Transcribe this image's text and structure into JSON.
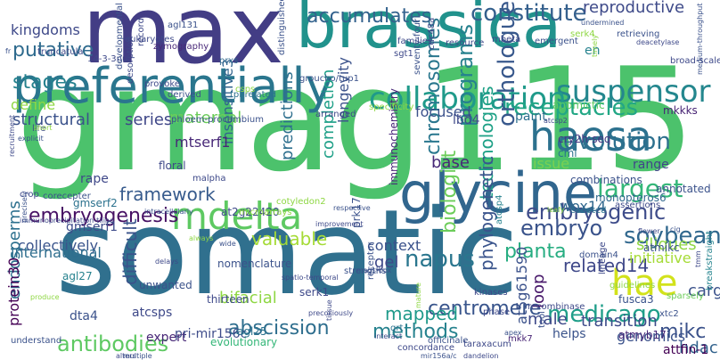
{
  "wordcloud": {
    "words": [
      {
        "text": "somatic",
        "color": "#30708e"
      },
      {
        "text": "gmag115",
        "color": "#4cc26c"
      },
      {
        "text": "max",
        "color": "#433d85"
      },
      {
        "text": "brassica",
        "color": "#21928c"
      },
      {
        "text": "preferentially",
        "color": "#2a768e"
      },
      {
        "text": "glycine",
        "color": "#31668e"
      },
      {
        "text": "mdelta",
        "color": "#5ec962"
      },
      {
        "text": "haesa",
        "color": "#2c718e"
      },
      {
        "text": "hae",
        "color": "#d2e21b"
      },
      {
        "text": "suspensor",
        "color": "#24878e"
      },
      {
        "text": "collaboration",
        "color": "#1f9a8a"
      },
      {
        "text": "constitute",
        "color": "#35608d"
      },
      {
        "text": "accumulates",
        "color": "#33628d"
      },
      {
        "text": "reproductive",
        "color": "#3e4a89"
      },
      {
        "text": "receptacles",
        "color": "#22a785"
      },
      {
        "text": "evolution",
        "color": "#2d708e"
      },
      {
        "text": "largest",
        "color": "#35b779"
      },
      {
        "text": "embryogenic",
        "color": "#3e4c8a"
      },
      {
        "text": "orthologue",
        "color": "#38588c"
      },
      {
        "text": "programs",
        "color": "#26818e"
      },
      {
        "text": "chromosomes",
        "color": "#2a778e"
      },
      {
        "text": "embryo",
        "color": "#3a538b"
      },
      {
        "text": "embryogenesis",
        "color": "#471164"
      },
      {
        "text": "framework",
        "color": "#375b8d"
      },
      {
        "text": "valuable",
        "color": "#a5db36"
      },
      {
        "text": "structural",
        "color": "#3b528b"
      },
      {
        "text": "series",
        "color": "#3f4788"
      },
      {
        "text": "maternal",
        "color": "#6ccd5a"
      },
      {
        "text": "putative",
        "color": "#2f6b8e"
      },
      {
        "text": "stages",
        "color": "#26828e"
      },
      {
        "text": "kingdoms",
        "color": "#3e4989"
      },
      {
        "text": "define",
        "color": "#8fd744"
      },
      {
        "text": "focused",
        "color": "#3b518b"
      },
      {
        "text": "longevity",
        "color": "#3b528b"
      },
      {
        "text": "completion",
        "color": "#1fa088"
      },
      {
        "text": "predictions",
        "color": "#2e6f8e"
      },
      {
        "text": "insensitive3",
        "color": "#32648e"
      },
      {
        "text": "context",
        "color": "#3b528b"
      },
      {
        "text": "planta",
        "color": "#26ad81"
      },
      {
        "text": "gel",
        "color": "#3e4989"
      },
      {
        "text": "napus",
        "color": "#2a768e"
      },
      {
        "text": "biologist",
        "color": "#6ccd5a"
      },
      {
        "text": "technologies",
        "color": "#1fa187"
      },
      {
        "text": "base",
        "color": "#482878"
      },
      {
        "text": "phylogenetic",
        "color": "#3a548c"
      },
      {
        "text": "centromere",
        "color": "#39558c"
      },
      {
        "text": "abscission",
        "color": "#2e6e8e"
      },
      {
        "text": "medicago",
        "color": "#1f9e89"
      },
      {
        "text": "soybean",
        "color": "#31688e"
      },
      {
        "text": "mikc",
        "color": "#3b528b"
      },
      {
        "text": "hdac",
        "color": "#33638d"
      },
      {
        "text": "carg",
        "color": "#3b528b"
      },
      {
        "text": "siliques",
        "color": "#8fd744"
      },
      {
        "text": "related14",
        "color": "#3f4889"
      },
      {
        "text": "initiative",
        "color": "#a5db36"
      },
      {
        "text": "transition",
        "color": "#3e4c8a"
      },
      {
        "text": "genomics",
        "color": "#3b528b"
      },
      {
        "text": "attfin-1",
        "color": "#440154"
      },
      {
        "text": "antibodies",
        "color": "#5ec962"
      },
      {
        "text": "difficult",
        "color": "#3a538b"
      },
      {
        "text": "collectively",
        "color": "#3a548c"
      },
      {
        "text": "endosperms",
        "color": "#2d708e"
      },
      {
        "text": "international",
        "color": "#2e6e8e"
      },
      {
        "text": "protein30",
        "color": "#440154"
      },
      {
        "text": "methods",
        "color": "#26828e"
      },
      {
        "text": "mapped",
        "color": "#1f9a8a"
      },
      {
        "text": "male",
        "color": "#3e4989"
      },
      {
        "text": "loop",
        "color": "#48186a"
      },
      {
        "text": "helps",
        "color": "#3a538b"
      },
      {
        "text": "issue",
        "color": "#7ad151"
      },
      {
        "text": "range",
        "color": "#404588"
      },
      {
        "text": "lbd4",
        "color": "#3e4989"
      },
      {
        "text": "mtserf1",
        "color": "#482878"
      },
      {
        "text": "gmserf1",
        "color": "#3e4c8a"
      },
      {
        "text": "gmserf2",
        "color": "#2c728e"
      },
      {
        "text": "dta4",
        "color": "#3b528b"
      },
      {
        "text": "wox14",
        "color": "#31688e"
      },
      {
        "text": "paint",
        "color": "#2d708e"
      },
      {
        "text": "mkkks",
        "color": "#482475"
      },
      {
        "text": "apomictic",
        "color": "#5ec962"
      },
      {
        "text": "cry2h-seq",
        "color": "#453781"
      },
      {
        "text": "cml",
        "color": "#2c728e"
      },
      {
        "text": "at5g61590",
        "color": "#3b528b"
      },
      {
        "text": "rape",
        "color": "#3f4889"
      },
      {
        "text": "en",
        "color": "#26828e"
      },
      {
        "text": "bifacial",
        "color": "#8fd744"
      },
      {
        "text": "agl27",
        "color": "#26828e"
      },
      {
        "text": "atcsps",
        "color": "#3e4989"
      },
      {
        "text": "expert",
        "color": "#482777"
      },
      {
        "text": "pri-mir156c",
        "color": "#3e4c8a"
      },
      {
        "text": "evolutionary",
        "color": "#35b779"
      },
      {
        "text": "agl25",
        "color": "#2c728e"
      },
      {
        "text": "unwanted",
        "color": "#3b528b"
      },
      {
        "text": "thirteen",
        "color": "#3e4989"
      },
      {
        "text": "fusca3",
        "color": "#3a538b"
      },
      {
        "text": "atmyb17",
        "color": "#482878"
      },
      {
        "text": "xtc2",
        "color": "#3b528b"
      },
      {
        "text": "sparsely",
        "color": "#6ccd5a"
      },
      {
        "text": "breakstraight",
        "color": "#25848e"
      },
      {
        "text": "mkk7",
        "color": "#482475"
      },
      {
        "text": "serk1",
        "color": "#3e4989"
      },
      {
        "text": "qrt",
        "color": "#2c728e"
      },
      {
        "text": "atmikc",
        "color": "#3b528b"
      },
      {
        "text": "annotated",
        "color": "#3b528b"
      },
      {
        "text": "at2g22420",
        "color": "#3e4989"
      },
      {
        "text": "monopteros6",
        "color": "#31688e"
      },
      {
        "text": "assertions",
        "color": "#3e4989"
      },
      {
        "text": "combinations",
        "color": "#3b528b"
      },
      {
        "text": "coopted",
        "color": "#2c728e"
      },
      {
        "text": "immunochemistry",
        "color": "#482878"
      },
      {
        "text": "atcsp4",
        "color": "#26828e"
      },
      {
        "text": "prk17",
        "color": "#3b528b"
      },
      {
        "text": "floral",
        "color": "#3e4989"
      },
      {
        "text": "nomenclature",
        "color": "#3b528b"
      },
      {
        "text": "phase",
        "color": "#3e4989"
      },
      {
        "text": "emergent",
        "color": "#3b528b"
      },
      {
        "text": "mbeta",
        "color": "#3e4989"
      },
      {
        "text": "agl131",
        "color": "#3b528b"
      },
      {
        "text": "zymography",
        "color": "#482878"
      },
      {
        "text": "eukaryotes",
        "color": "#3e4989"
      },
      {
        "text": "distinguished",
        "color": "#3b528b"
      },
      {
        "text": "prxs",
        "color": "#31688e"
      },
      {
        "text": "14-3-3nu",
        "color": "#3e4989"
      },
      {
        "text": "provoke",
        "color": "#3e4989"
      },
      {
        "text": "derived",
        "color": "#3b528b"
      },
      {
        "text": "tpl-related",
        "color": "#2c728e"
      },
      {
        "text": "csps",
        "color": "#8fd744"
      },
      {
        "text": "groucho/tup1",
        "color": "#3b528b"
      },
      {
        "text": "sgt1",
        "color": "#3e4989"
      },
      {
        "text": "resource",
        "color": "#3e4989"
      },
      {
        "text": "families",
        "color": "#3e4989"
      },
      {
        "text": "seventy-four",
        "color": "#3b528b"
      },
      {
        "text": "cdc48a",
        "color": "#3e4989"
      },
      {
        "text": "serk4",
        "color": "#8fd744"
      },
      {
        "text": "undermined",
        "color": "#3b528b"
      },
      {
        "text": "timely",
        "color": "#8fd744"
      },
      {
        "text": "retrieving",
        "color": "#3b528b"
      },
      {
        "text": "broad-scale",
        "color": "#3e4989"
      },
      {
        "text": "deacetylase",
        "color": "#3e4989"
      },
      {
        "text": "medium-throughput",
        "color": "#3b528b"
      },
      {
        "text": "truncatula",
        "color": "#3e4989"
      },
      {
        "text": "developmental",
        "color": "#3b528b"
      },
      {
        "text": "record",
        "color": "#3e4989"
      },
      {
        "text": "arranged",
        "color": "#3e4989"
      },
      {
        "text": "specificity",
        "color": "#8fd744"
      },
      {
        "text": "phloem-procambium",
        "color": "#3b528b"
      },
      {
        "text": "desorption",
        "color": "#3e4989"
      },
      {
        "text": "malpha",
        "color": "#3e4989"
      },
      {
        "text": "cotyledon2",
        "color": "#8fd744"
      },
      {
        "text": "respective",
        "color": "#3b528b"
      },
      {
        "text": "improvement",
        "color": "#3e4989"
      },
      {
        "text": "microarrays",
        "color": "#8fd744"
      },
      {
        "text": "strengths",
        "color": "#3b528b"
      },
      {
        "text": "precociously",
        "color": "#3e4989"
      },
      {
        "text": "mature",
        "color": "#8fd744"
      },
      {
        "text": "tissue",
        "color": "#3e4989"
      },
      {
        "text": "receptor",
        "color": "#3b528b"
      },
      {
        "text": "concordance",
        "color": "#3e4989"
      },
      {
        "text": "mir156a/c",
        "color": "#3b528b"
      },
      {
        "text": "dandelion",
        "color": "#3e4989"
      },
      {
        "text": "officinale",
        "color": "#3b528b"
      },
      {
        "text": "taraxacum",
        "color": "#3e4989"
      },
      {
        "text": "kinases",
        "color": "#3e4989"
      },
      {
        "text": "apex",
        "color": "#3b528b"
      },
      {
        "text": "recombinase",
        "color": "#3e4989"
      },
      {
        "text": "guidelines",
        "color": "#8fd744"
      },
      {
        "text": "lineage",
        "color": "#3e4989"
      },
      {
        "text": "domain4",
        "color": "#3b528b"
      },
      {
        "text": "leafy",
        "color": "#8fd744"
      },
      {
        "text": "flower",
        "color": "#3e4989"
      },
      {
        "text": "tool",
        "color": "#3b528b"
      },
      {
        "text": "atcsp2",
        "color": "#3e4989"
      },
      {
        "text": "understand",
        "color": "#3b528b"
      },
      {
        "text": "produce",
        "color": "#8fd744"
      },
      {
        "text": "crop",
        "color": "#3e4989"
      },
      {
        "text": "corecepter",
        "color": "#3b528b"
      },
      {
        "text": "life",
        "color": "#3e4989"
      },
      {
        "text": "short",
        "color": "#8fd744"
      },
      {
        "text": "explicit",
        "color": "#3b528b"
      },
      {
        "text": "recruitment",
        "color": "#3e4989"
      },
      {
        "text": "intracellularly",
        "color": "#3b528b"
      },
      {
        "text": "immunoprecipitation-tiling",
        "color": "#3e4989"
      },
      {
        "text": "precisely",
        "color": "#3b528b"
      },
      {
        "text": "alters",
        "color": "#3e4989"
      },
      {
        "text": "multiple",
        "color": "#3b528b"
      },
      {
        "text": "delays",
        "color": "#3e4989"
      },
      {
        "text": "always",
        "color": "#8fd744"
      },
      {
        "text": "wide",
        "color": "#3b528b"
      },
      {
        "text": "spatio-temporal",
        "color": "#3e4989"
      },
      {
        "text": "mads-box",
        "color": "#3b528b"
      },
      {
        "text": "interact",
        "color": "#3e4989"
      },
      {
        "text": "cig",
        "color": "#3b528b"
      },
      {
        "text": "tmm",
        "color": "#3e4989"
      },
      {
        "text": "fr",
        "color": "#3b528b"
      }
    ]
  }
}
